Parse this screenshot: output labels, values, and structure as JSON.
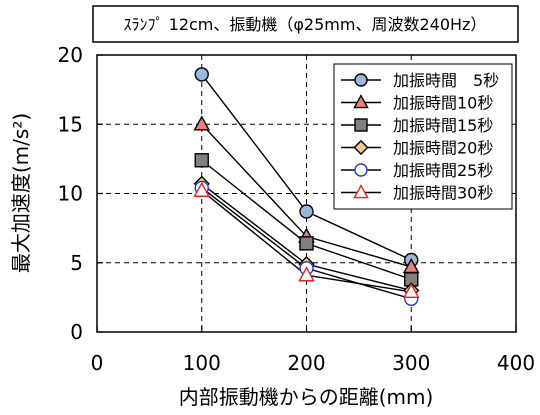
{
  "chart_data": {
    "type": "line",
    "title": "ｽﾗﾝﾌﾟ 12cm、振動機（φ25mm、周波数240Hz）",
    "xlabel": "内部振動機からの距離(mm)",
    "ylabel": "最大加速度(m/s²)",
    "xlim": [
      0,
      400
    ],
    "ylim": [
      0,
      20
    ],
    "x_ticks": [
      "0",
      "100",
      "200",
      "300",
      "400"
    ],
    "y_ticks": [
      "0",
      "5",
      "10",
      "15",
      "20"
    ],
    "grid": "dashed",
    "legend_position": "top-right",
    "x": [
      100,
      200,
      300
    ],
    "series": [
      {
        "name": "加振時間　5秒",
        "values": [
          18.6,
          8.7,
          5.2
        ],
        "marker": "circle",
        "fill": "#9ab7dc",
        "stroke": "#000000"
      },
      {
        "name": "加振時間10秒",
        "values": [
          15.0,
          6.9,
          4.7
        ],
        "marker": "triangle",
        "fill": "#e8817d",
        "stroke": "#000000"
      },
      {
        "name": "加振時間15秒",
        "values": [
          12.4,
          6.4,
          3.8
        ],
        "marker": "square",
        "fill": "#808080",
        "stroke": "#000000"
      },
      {
        "name": "加振時間20秒",
        "values": [
          10.7,
          4.9,
          3.0
        ],
        "marker": "diamond",
        "fill": "#f2c98e",
        "stroke": "#000000"
      },
      {
        "name": "加振時間25秒",
        "values": [
          10.4,
          4.6,
          2.4
        ],
        "marker": "circle",
        "fill": "#ffffff",
        "stroke": "#1f3fbf"
      },
      {
        "name": "加振時間30秒",
        "values": [
          10.2,
          4.1,
          2.9
        ],
        "marker": "triangle",
        "fill": "#ffffff",
        "stroke": "#e8231f"
      }
    ]
  }
}
